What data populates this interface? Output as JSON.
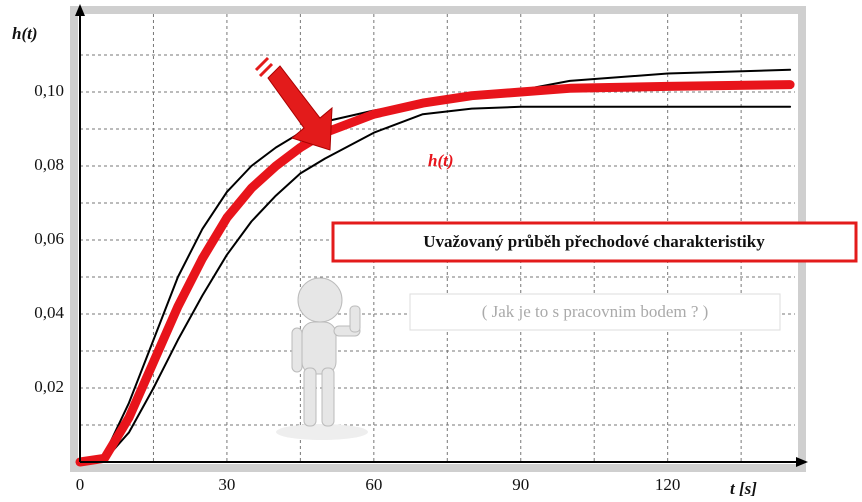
{
  "chart_data": {
    "type": "line",
    "y_label": "h(t)",
    "x_label": "t [s]",
    "annotations": [
      "h(t)",
      "Uvažovaný průběh přechodové charakteristiky",
      "( Jak je to s pracovnim bodem ? )"
    ],
    "x": [
      0,
      5,
      10,
      15,
      20,
      25,
      30,
      35,
      40,
      45,
      50,
      60,
      70,
      80,
      90,
      100,
      120,
      145
    ],
    "series": [
      {
        "color": "#e8141b",
        "values": [
          0,
          0.001,
          0.012,
          0.027,
          0.042,
          0.055,
          0.066,
          0.074,
          0.08,
          0.085,
          0.089,
          0.094,
          0.097,
          0.099,
          0.1,
          0.101,
          0.1015,
          0.102
        ]
      },
      {
        "color": "#000000",
        "values": [
          0,
          0.002,
          0.016,
          0.033,
          0.05,
          0.063,
          0.073,
          0.08,
          0.085,
          0.089,
          0.092,
          0.095,
          0.097,
          0.099,
          0.1005,
          0.103,
          0.105,
          0.106
        ]
      },
      {
        "color": "#000000",
        "values": [
          0,
          0.0005,
          0.008,
          0.02,
          0.033,
          0.045,
          0.056,
          0.065,
          0.072,
          0.078,
          0.082,
          0.089,
          0.094,
          0.0955,
          0.096,
          0.096,
          0.096,
          0.096
        ]
      }
    ],
    "xlim": [
      0,
      146
    ],
    "xticks": [
      0,
      30,
      60,
      90,
      120
    ],
    "xminor": [
      15,
      45,
      75,
      105,
      135
    ],
    "ylim": [
      0,
      0.12
    ],
    "yticks": [
      {
        "value": 0.02,
        "label": "0,02"
      },
      {
        "value": 0.04,
        "label": "0,04"
      },
      {
        "value": 0.06,
        "label": "0,06"
      },
      {
        "value": 0.08,
        "label": "0,08"
      },
      {
        "value": 0.1,
        "label": "0,10"
      }
    ],
    "yminor": [
      0.01,
      0.03,
      0.05,
      0.07,
      0.09,
      0.11
    ],
    "grid": true
  }
}
